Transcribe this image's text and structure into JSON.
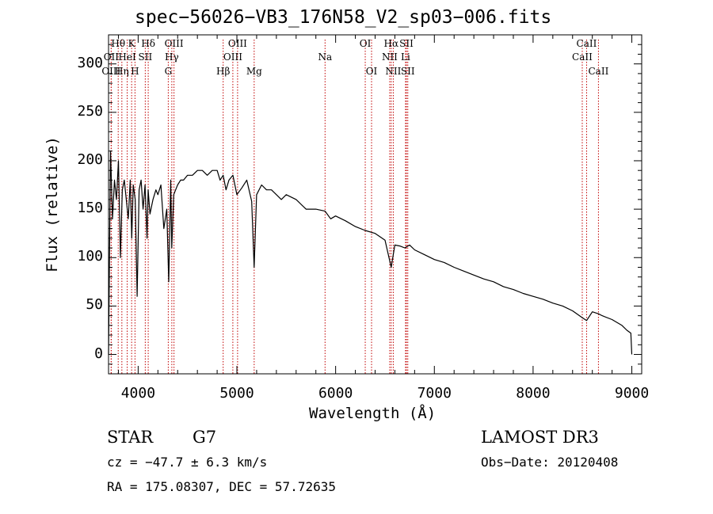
{
  "chart_data": {
    "type": "line",
    "title": "spec−56026−VB3_176N58_V2_sp03−006.fits",
    "xlabel": "Wavelength (Å)",
    "ylabel": "Flux (relative)",
    "xlim": [
      3700,
      9100
    ],
    "ylim": [
      -20,
      330
    ],
    "xticks": [
      4000,
      5000,
      6000,
      7000,
      8000,
      9000
    ],
    "yticks": [
      0,
      50,
      100,
      150,
      200,
      250,
      300
    ],
    "grid": false,
    "series": [
      {
        "name": "spectrum",
        "x": [
          3700,
          3720,
          3740,
          3760,
          3780,
          3800,
          3820,
          3840,
          3860,
          3880,
          3900,
          3920,
          3935,
          3950,
          3970,
          3990,
          4010,
          4030,
          4050,
          4070,
          4090,
          4101,
          4120,
          4150,
          4180,
          4200,
          4230,
          4260,
          4290,
          4310,
          4330,
          4340,
          4360,
          4380,
          4400,
          4430,
          4460,
          4500,
          4550,
          4600,
          4650,
          4700,
          4750,
          4800,
          4830,
          4861,
          4890,
          4920,
          4960,
          5000,
          5050,
          5100,
          5150,
          5175,
          5200,
          5250,
          5300,
          5350,
          5400,
          5450,
          5500,
          5600,
          5700,
          5800,
          5893,
          5950,
          6000,
          6100,
          6200,
          6300,
          6400,
          6500,
          6563,
          6600,
          6650,
          6700,
          6750,
          6800,
          6900,
          7000,
          7100,
          7200,
          7300,
          7400,
          7500,
          7600,
          7700,
          7800,
          7900,
          8000,
          8100,
          8200,
          8300,
          8400,
          8498,
          8542,
          8600,
          8662,
          8700,
          8800,
          8900,
          8950,
          8990,
          9000
        ],
        "values": [
          0,
          210,
          140,
          180,
          160,
          200,
          100,
          170,
          180,
          160,
          140,
          180,
          120,
          175,
          160,
          60,
          170,
          180,
          150,
          175,
          120,
          170,
          145,
          160,
          170,
          165,
          175,
          130,
          150,
          75,
          180,
          110,
          165,
          170,
          175,
          180,
          180,
          185,
          185,
          190,
          190,
          185,
          190,
          190,
          180,
          185,
          170,
          180,
          185,
          165,
          172,
          180,
          158,
          90,
          165,
          175,
          170,
          170,
          165,
          160,
          165,
          160,
          150,
          150,
          148,
          140,
          143,
          138,
          132,
          128,
          125,
          118,
          90,
          113,
          112,
          110,
          113,
          108,
          103,
          98,
          95,
          90,
          86,
          82,
          78,
          75,
          70,
          67,
          63,
          60,
          57,
          53,
          50,
          45,
          38,
          35,
          44,
          42,
          40,
          36,
          30,
          25,
          22,
          0
        ]
      }
    ],
    "line_markers": [
      {
        "label": "Hθ",
        "x": 3798,
        "row": 0
      },
      {
        "label": "OII",
        "x": 3727,
        "row": 1
      },
      {
        "label": "OIII",
        "x": 3727,
        "row": 2
      },
      {
        "label": "Hη",
        "x": 3835,
        "row": 2
      },
      {
        "label": "K",
        "x": 3934,
        "row": 0
      },
      {
        "label": "HeI",
        "x": 3889,
        "row": 1
      },
      {
        "label": "Hδ",
        "x": 4102,
        "row": 0
      },
      {
        "label": "SII",
        "x": 4072,
        "row": 1
      },
      {
        "label": "H",
        "x": 3968,
        "row": 2
      },
      {
        "label": "OIII",
        "x": 4363,
        "row": 0
      },
      {
        "label": "Hγ",
        "x": 4341,
        "row": 1
      },
      {
        "label": "G",
        "x": 4305,
        "row": 2
      },
      {
        "label": "OIII",
        "x": 5007,
        "row": 0
      },
      {
        "label": "OIII",
        "x": 4959,
        "row": 1
      },
      {
        "label": "Hβ",
        "x": 4861,
        "row": 2
      },
      {
        "label": "Mg",
        "x": 5175,
        "row": 2
      },
      {
        "label": "Na",
        "x": 5893,
        "row": 1
      },
      {
        "label": "OI",
        "x": 6300,
        "row": 0
      },
      {
        "label": "OI",
        "x": 6364,
        "row": 2
      },
      {
        "label": "Hα",
        "x": 6563,
        "row": 0
      },
      {
        "label": "SII",
        "x": 6717,
        "row": 0
      },
      {
        "label": "NII",
        "x": 6548,
        "row": 1
      },
      {
        "label": "Li",
        "x": 6708,
        "row": 1
      },
      {
        "label": "NII",
        "x": 6584,
        "row": 2
      },
      {
        "label": "SII",
        "x": 6731,
        "row": 2
      },
      {
        "label": "CaII",
        "x": 8542,
        "row": 0
      },
      {
        "label": "CaII",
        "x": 8498,
        "row": 1
      },
      {
        "label": "CaII",
        "x": 8662,
        "row": 2
      }
    ]
  },
  "info": {
    "object_class": "STAR",
    "subclass": "G7",
    "cz": "cz = −47.7 ± 6.3 km/s",
    "radec": "RA = 175.08307, DEC =  57.72635",
    "survey": "LAMOST DR3",
    "obs_date": "Obs−Date: 20120408"
  }
}
